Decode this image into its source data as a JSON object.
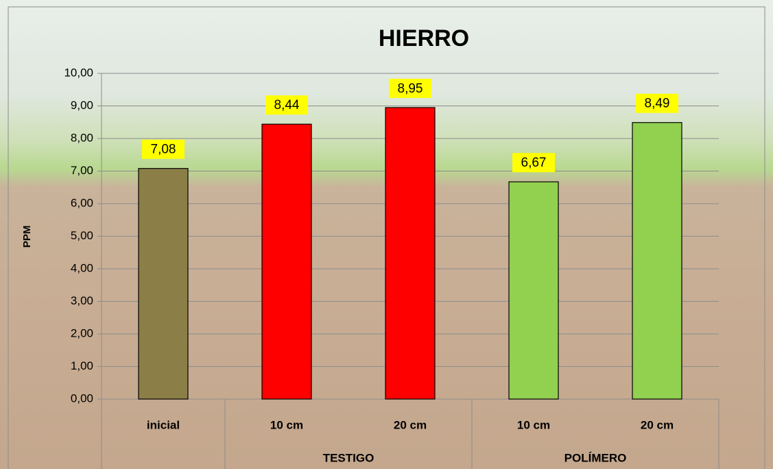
{
  "chart_data": {
    "type": "bar",
    "title": "HIERRO",
    "ylabel": "PPM",
    "categories": [
      "inicial",
      "10 cm",
      "20 cm",
      "10 cm",
      "20 cm"
    ],
    "groups": [
      null,
      "TESTIGO",
      "TESTIGO",
      "POLÍMERO",
      "POLÍMERO"
    ],
    "values": [
      7.08,
      8.44,
      8.95,
      6.67,
      8.49
    ],
    "value_labels": [
      "7,08",
      "8,44",
      "8,95",
      "6,67",
      "8,49"
    ],
    "colors": [
      "#8b7f47",
      "#ff0000",
      "#ff0000",
      "#92d050",
      "#92d050"
    ],
    "ylim": [
      0,
      10
    ],
    "yticks": [
      {
        "value": 0,
        "label": "0,00"
      },
      {
        "value": 1,
        "label": "1,00"
      },
      {
        "value": 2,
        "label": "2,00"
      },
      {
        "value": 3,
        "label": "3,00"
      },
      {
        "value": 4,
        "label": "4,00"
      },
      {
        "value": 5,
        "label": "5,00"
      },
      {
        "value": 6,
        "label": "6,00"
      },
      {
        "value": 7,
        "label": "7,00"
      },
      {
        "value": 8,
        "label": "8,00"
      },
      {
        "value": 9,
        "label": "9,00"
      },
      {
        "value": 10,
        "label": "10,00"
      }
    ],
    "grid": true
  }
}
